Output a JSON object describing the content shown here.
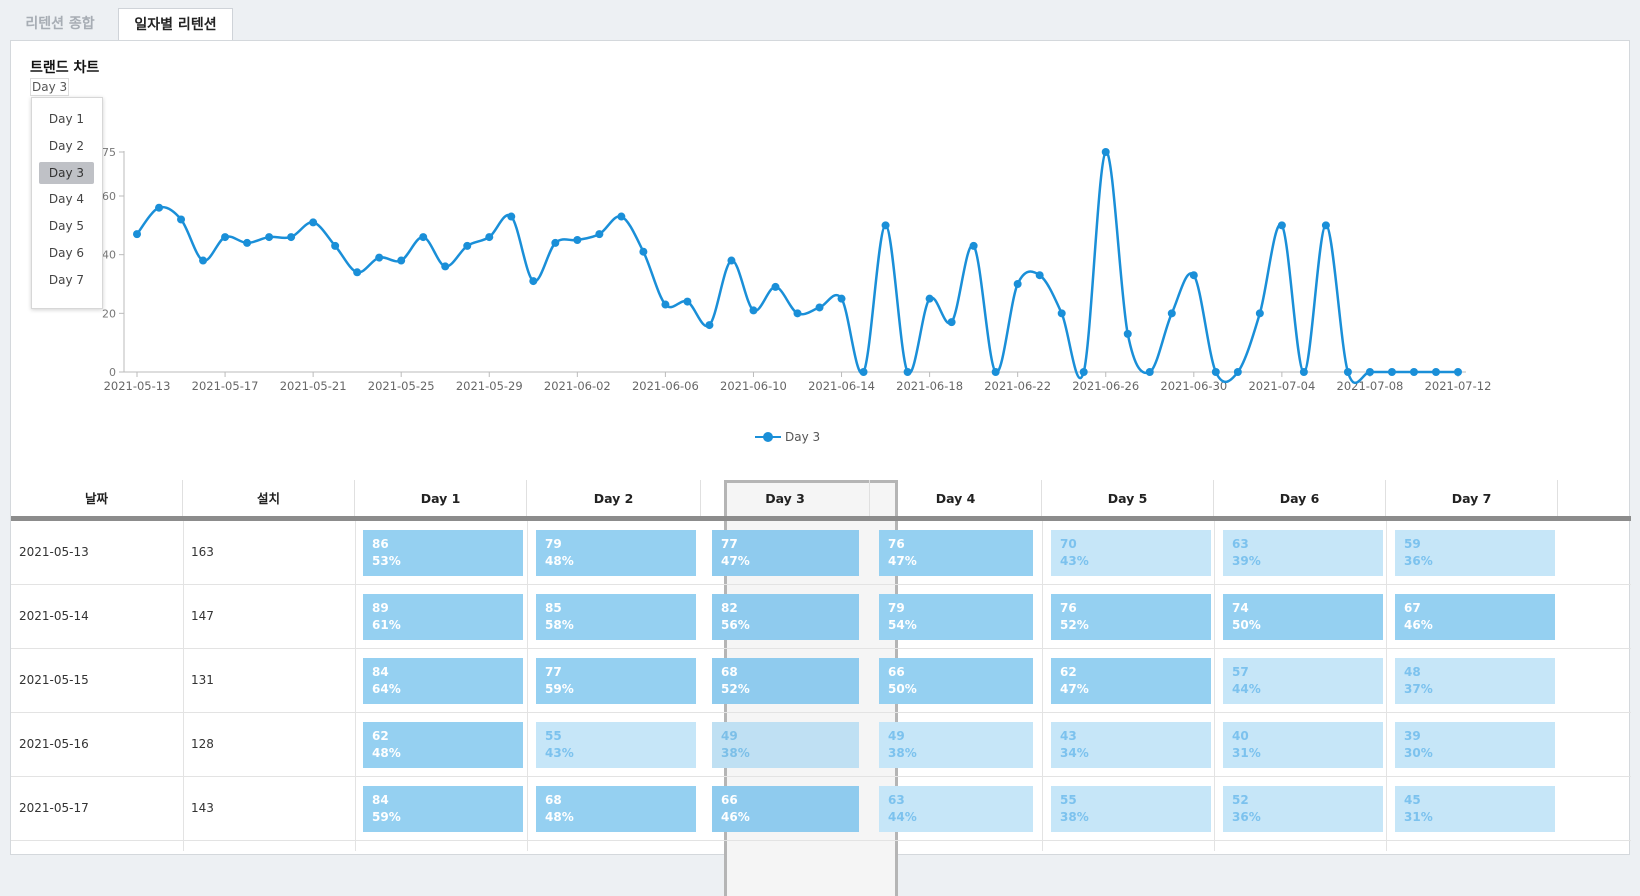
{
  "tabs": [
    {
      "label": "리텐션 종합",
      "active": false
    },
    {
      "label": "일자별 리텐션",
      "active": true
    }
  ],
  "chart_panel": {
    "title": "트랜드 차트",
    "selected_day": "Day 3",
    "dropdown_options": [
      "Day 1",
      "Day 2",
      "Day 3",
      "Day 4",
      "Day 5",
      "Day 6",
      "Day 7"
    ]
  },
  "chart_data": {
    "type": "line",
    "title": "",
    "xlabel": "",
    "ylabel": "",
    "ylim": [
      0,
      75
    ],
    "yticks": [
      0,
      20,
      40,
      60,
      75
    ],
    "x_tick_labels": [
      "2021-05-13",
      "2021-05-17",
      "2021-05-21",
      "2021-05-25",
      "2021-05-29",
      "2021-06-02",
      "2021-06-06",
      "2021-06-10",
      "2021-06-14",
      "2021-06-18",
      "2021-06-22",
      "2021-06-26",
      "2021-06-30",
      "2021-07-04",
      "2021-07-08",
      "2021-07-12"
    ],
    "x_start": "2021-05-13",
    "x_end": "2021-07-12",
    "legend": "bottom-center",
    "grid": false,
    "color": "#1a8fd8",
    "series": [
      {
        "name": "Day 3",
        "values": [
          47,
          56,
          52,
          38,
          46,
          44,
          46,
          46,
          51,
          43,
          34,
          39,
          38,
          46,
          36,
          43,
          46,
          53,
          31,
          44,
          45,
          47,
          53,
          41,
          23,
          24,
          16,
          38,
          21,
          29,
          20,
          22,
          25,
          0,
          50,
          0,
          25,
          17,
          43,
          0,
          30,
          33,
          20,
          0,
          75,
          13,
          0,
          20,
          33,
          0,
          0,
          20,
          50,
          0,
          50,
          0,
          0,
          0,
          0,
          0,
          0
        ]
      }
    ]
  },
  "table": {
    "headers": [
      "날짜",
      "설치",
      "Day 1",
      "Day 2",
      "Day 3",
      "Day 4",
      "Day 5",
      "Day 6",
      "Day 7"
    ],
    "selected_col": "Day 3",
    "rows": [
      {
        "date": "2021-05-13",
        "installs": "163",
        "cells": [
          {
            "n": "86",
            "p": "53%",
            "lvl": "dark"
          },
          {
            "n": "79",
            "p": "48%",
            "lvl": "dark"
          },
          {
            "n": "77",
            "p": "47%",
            "lvl": "mid"
          },
          {
            "n": "76",
            "p": "47%",
            "lvl": "dark"
          },
          {
            "n": "70",
            "p": "43%",
            "lvl": "light"
          },
          {
            "n": "63",
            "p": "39%",
            "lvl": "light"
          },
          {
            "n": "59",
            "p": "36%",
            "lvl": "light"
          }
        ]
      },
      {
        "date": "2021-05-14",
        "installs": "147",
        "cells": [
          {
            "n": "89",
            "p": "61%",
            "lvl": "dark"
          },
          {
            "n": "85",
            "p": "58%",
            "lvl": "dark"
          },
          {
            "n": "82",
            "p": "56%",
            "lvl": "mid"
          },
          {
            "n": "79",
            "p": "54%",
            "lvl": "dark"
          },
          {
            "n": "76",
            "p": "52%",
            "lvl": "dark"
          },
          {
            "n": "74",
            "p": "50%",
            "lvl": "dark"
          },
          {
            "n": "67",
            "p": "46%",
            "lvl": "dark"
          }
        ]
      },
      {
        "date": "2021-05-15",
        "installs": "131",
        "cells": [
          {
            "n": "84",
            "p": "64%",
            "lvl": "dark"
          },
          {
            "n": "77",
            "p": "59%",
            "lvl": "dark"
          },
          {
            "n": "68",
            "p": "52%",
            "lvl": "mid"
          },
          {
            "n": "66",
            "p": "50%",
            "lvl": "dark"
          },
          {
            "n": "62",
            "p": "47%",
            "lvl": "dark"
          },
          {
            "n": "57",
            "p": "44%",
            "lvl": "light"
          },
          {
            "n": "48",
            "p": "37%",
            "lvl": "light"
          }
        ]
      },
      {
        "date": "2021-05-16",
        "installs": "128",
        "cells": [
          {
            "n": "62",
            "p": "48%",
            "lvl": "dark"
          },
          {
            "n": "55",
            "p": "43%",
            "lvl": "light"
          },
          {
            "n": "49",
            "p": "38%",
            "lvl": "sel-light"
          },
          {
            "n": "49",
            "p": "38%",
            "lvl": "light"
          },
          {
            "n": "43",
            "p": "34%",
            "lvl": "light"
          },
          {
            "n": "40",
            "p": "31%",
            "lvl": "light"
          },
          {
            "n": "39",
            "p": "30%",
            "lvl": "light"
          }
        ]
      },
      {
        "date": "2021-05-17",
        "installs": "143",
        "cells": [
          {
            "n": "84",
            "p": "59%",
            "lvl": "dark"
          },
          {
            "n": "68",
            "p": "48%",
            "lvl": "dark"
          },
          {
            "n": "66",
            "p": "46%",
            "lvl": "mid"
          },
          {
            "n": "63",
            "p": "44%",
            "lvl": "light"
          },
          {
            "n": "55",
            "p": "38%",
            "lvl": "light"
          },
          {
            "n": "52",
            "p": "36%",
            "lvl": "light"
          },
          {
            "n": "45",
            "p": "31%",
            "lvl": "light"
          }
        ]
      }
    ]
  }
}
